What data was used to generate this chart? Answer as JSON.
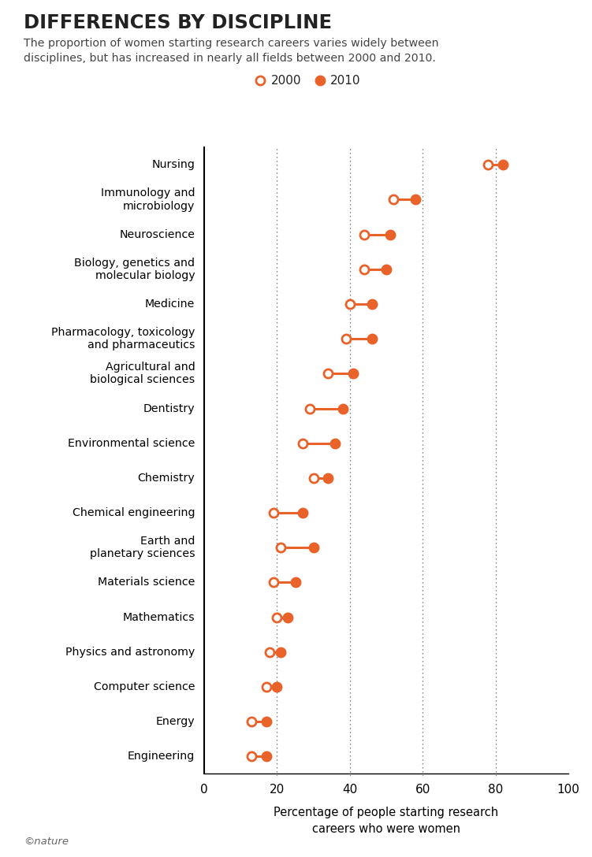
{
  "title": "DIFFERENCES BY DISCIPLINE",
  "subtitle": "The proportion of women starting research careers varies widely between\ndisciplines, but has increased in nearly all fields between 2000 and 2010.",
  "xlabel": "Percentage of people starting research\ncareers who were women",
  "categories": [
    "Nursing",
    "Immunology and\nmicrobiology",
    "Neuroscience",
    "Biology, genetics and\nmolecular biology",
    "Medicine",
    "Pharmacology, toxicology\nand pharmaceutics",
    "Agricultural and\nbiological sciences",
    "Dentistry",
    "Environmental science",
    "Chemistry",
    "Chemical engineering",
    "Earth and\nplanetary sciences",
    "Materials science",
    "Mathematics",
    "Physics and astronomy",
    "Computer science",
    "Energy",
    "Engineering"
  ],
  "values_2000": [
    78,
    52,
    44,
    44,
    40,
    39,
    34,
    29,
    27,
    30,
    19,
    21,
    19,
    20,
    18,
    17,
    13,
    13
  ],
  "values_2010": [
    82,
    58,
    51,
    50,
    46,
    46,
    41,
    38,
    36,
    34,
    27,
    30,
    25,
    23,
    21,
    20,
    17,
    17
  ],
  "color": "#E8622A",
  "xlim": [
    0,
    100
  ],
  "xticks": [
    0,
    20,
    40,
    60,
    80,
    100
  ],
  "vlines": [
    20,
    40,
    60,
    80
  ],
  "marker_size": 8,
  "line_width": 2.2,
  "footnote": "©nature",
  "bg_color": "#ffffff",
  "text_color": "#222222",
  "subtitle_color": "#444444"
}
